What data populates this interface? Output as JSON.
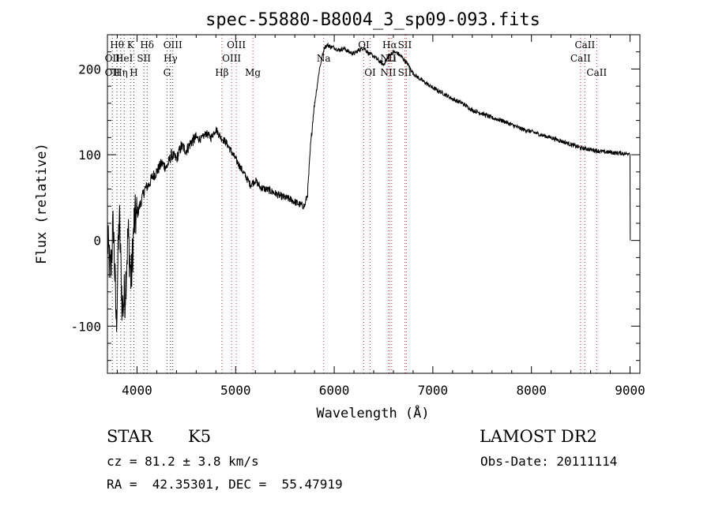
{
  "chart_data": {
    "type": "line",
    "title": "spec-55880-B8004_3_sp09-093.fits",
    "xlabel": "Wavelength (Å)",
    "ylabel": "Flux (relative)",
    "xlim": [
      3700,
      9100
    ],
    "ylim": [
      -155,
      240
    ],
    "xticks": [
      4000,
      5000,
      6000,
      7000,
      8000,
      9000
    ],
    "yticks": [
      -100,
      0,
      100,
      200
    ],
    "grid": false,
    "series": [
      {
        "color": "#000000",
        "x": [
          3700,
          3730,
          3760,
          3790,
          3820,
          3850,
          3880,
          3910,
          3940,
          3970,
          4000,
          4040,
          4080,
          4120,
          4160,
          4200,
          4250,
          4300,
          4350,
          4400,
          4450,
          4500,
          4550,
          4600,
          4650,
          4700,
          4750,
          4800,
          4850,
          4900,
          4950,
          5000,
          5050,
          5100,
          5150,
          5200,
          5250,
          5300,
          5350,
          5400,
          5450,
          5500,
          5550,
          5600,
          5650,
          5700,
          5730,
          5760,
          5790,
          5820,
          5850,
          5880,
          5900,
          5930,
          5960,
          6000,
          6050,
          6100,
          6150,
          6200,
          6250,
          6300,
          6350,
          6400,
          6450,
          6500,
          6550,
          6600,
          6650,
          6700,
          6750,
          6800,
          6850,
          6900,
          6950,
          7000,
          7100,
          7200,
          7300,
          7400,
          7500,
          7600,
          7700,
          7800,
          7900,
          8000,
          8100,
          8200,
          8300,
          8400,
          8500,
          8550,
          8600,
          8650,
          8700,
          8750,
          8800,
          8850,
          8900,
          8950,
          8990,
          9000,
          9002
        ],
        "values": [
          0,
          -40,
          20,
          -100,
          30,
          -80,
          -60,
          10,
          -50,
          20,
          30,
          45,
          60,
          65,
          75,
          80,
          90,
          85,
          100,
          95,
          110,
          105,
          115,
          120,
          118,
          125,
          120,
          130,
          120,
          115,
          105,
          95,
          85,
          75,
          65,
          70,
          62,
          60,
          58,
          55,
          52,
          50,
          48,
          45,
          42,
          40,
          55,
          110,
          150,
          175,
          200,
          215,
          225,
          228,
          226,
          225,
          222,
          224,
          220,
          218,
          222,
          225,
          218,
          215,
          210,
          205,
          215,
          220,
          218,
          212,
          205,
          195,
          190,
          186,
          182,
          178,
          172,
          165,
          160,
          152,
          148,
          143,
          140,
          135,
          130,
          127,
          123,
          120,
          116,
          112,
          108,
          107,
          106,
          105,
          104,
          103,
          103,
          102,
          102,
          101,
          102,
          100,
          0
        ]
      }
    ],
    "lines": [
      {
        "x": 3750,
        "color": "#333333",
        "labels": [
          {
            "text": "OII",
            "row": 1
          },
          {
            "text": "OII",
            "row": 2
          }
        ]
      },
      {
        "x": 3797,
        "color": "#333333",
        "labels": [
          {
            "text": "Hθ",
            "row": 0
          }
        ]
      },
      {
        "x": 3835,
        "color": "#333333",
        "labels": [
          {
            "text": "Hη",
            "row": 2
          }
        ]
      },
      {
        "x": 3870,
        "color": "#333333",
        "labels": [
          {
            "text": "HeI",
            "row": 1
          }
        ]
      },
      {
        "x": 3934,
        "color": "#333333",
        "labels": [
          {
            "text": "K",
            "row": 0
          }
        ]
      },
      {
        "x": 3968,
        "color": "#333333",
        "labels": [
          {
            "text": "H",
            "row": 2
          }
        ]
      },
      {
        "x": 4070,
        "color": "#333333",
        "labels": [
          {
            "text": "SII",
            "row": 1
          }
        ]
      },
      {
        "x": 4102,
        "color": "#333333",
        "labels": [
          {
            "text": "Hδ",
            "row": 0
          }
        ]
      },
      {
        "x": 4304,
        "color": "#333333",
        "labels": [
          {
            "text": "G",
            "row": 2
          }
        ]
      },
      {
        "x": 4340,
        "color": "#333333",
        "labels": [
          {
            "text": "Hγ",
            "row": 1
          }
        ]
      },
      {
        "x": 4363,
        "color": "#333333",
        "labels": [
          {
            "text": "OIII",
            "row": 0
          }
        ]
      },
      {
        "x": 4861,
        "color": "#cc3333",
        "labels": [
          {
            "text": "Hβ",
            "row": 2
          }
        ]
      },
      {
        "x": 4959,
        "color": "#cc3333",
        "labels": [
          {
            "text": "OIII",
            "row": 1
          }
        ]
      },
      {
        "x": 5007,
        "color": "#cc3333",
        "labels": [
          {
            "text": "OIII",
            "row": 0
          }
        ]
      },
      {
        "x": 5175,
        "color": "#cc3333",
        "labels": [
          {
            "text": "Mg",
            "row": 2
          }
        ]
      },
      {
        "x": 5893,
        "color": "#cc3333",
        "labels": [
          {
            "text": "Na",
            "row": 1
          }
        ]
      },
      {
        "x": 6300,
        "color": "#cc3333",
        "labels": [
          {
            "text": "OI",
            "row": 0
          }
        ]
      },
      {
        "x": 6364,
        "color": "#cc3333",
        "labels": [
          {
            "text": "OI",
            "row": 2
          }
        ]
      },
      {
        "x": 6548,
        "color": "#cc3333",
        "labels": [
          {
            "text": "NII",
            "row": 1
          },
          {
            "text": "NII",
            "row": 2
          }
        ]
      },
      {
        "x": 6563,
        "color": "#cc3333",
        "labels": [
          {
            "text": "Hα",
            "row": 0
          }
        ]
      },
      {
        "x": 6583,
        "color": "#cc3333",
        "labels": [
          {
            "text": "Li",
            "row": 1
          }
        ]
      },
      {
        "x": 6716,
        "color": "#cc3333",
        "labels": [
          {
            "text": "SII",
            "row": 0
          },
          {
            "text": "SII",
            "row": 2
          }
        ]
      },
      {
        "x": 6731,
        "color": "#cc3333",
        "labels": []
      },
      {
        "x": 8498,
        "color": "#cc3333",
        "labels": [
          {
            "text": "CaII",
            "row": 1
          }
        ]
      },
      {
        "x": 8542,
        "color": "#cc3333",
        "labels": [
          {
            "text": "CaII",
            "row": 0
          }
        ]
      },
      {
        "x": 8662,
        "color": "#cc3333",
        "labels": [
          {
            "text": "CaII",
            "row": 2
          }
        ]
      }
    ]
  },
  "info": {
    "class_label": "STAR",
    "subclass": "K5",
    "survey": "LAMOST DR2",
    "cz": "cz = 81.2 ± 3.8 km/s",
    "obs_date": "Obs-Date: 20111114",
    "coords": "RA =  42.35301, DEC =  55.47919"
  }
}
